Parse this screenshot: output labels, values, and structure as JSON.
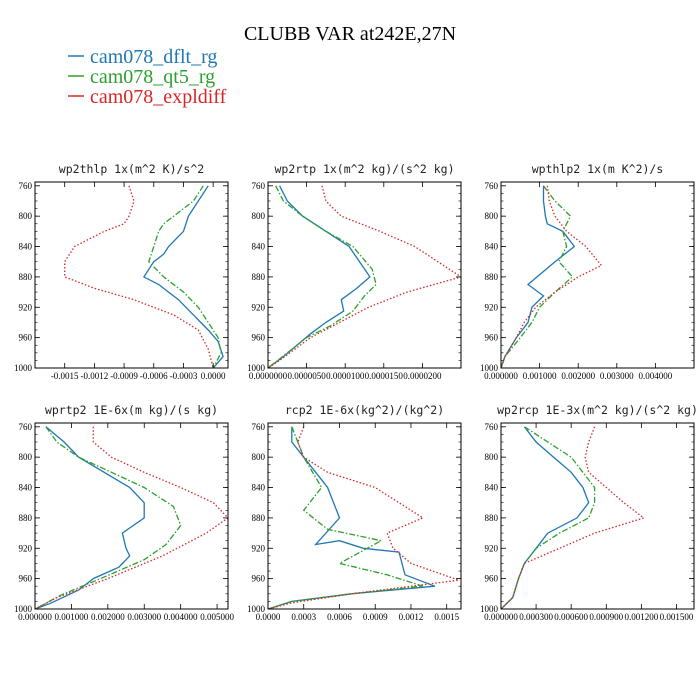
{
  "figure": {
    "title": "CLUBB VAR at242E,27N",
    "legend": [
      {
        "label": "cam078_dflt_rg",
        "color": "#1f77b4",
        "dash": "solid"
      },
      {
        "label": "cam078_qt5_rg",
        "color": "#2ca02c",
        "dash": "dashdot"
      },
      {
        "label": "cam078_expldiff",
        "color": "#d62728",
        "dash": "dotted"
      }
    ]
  },
  "chart_data": [
    {
      "type": "line",
      "title": "wp2thlp   1x(m^2 K)/s^2",
      "xlim": [
        -0.0018,
        0.00015
      ],
      "ylim": [
        1000,
        755
      ],
      "xticks": [
        -0.0015,
        -0.0012,
        -0.0009,
        -0.0006,
        -0.0003,
        0.0
      ],
      "xtick_labels": [
        "-0.0015",
        "-0.0012",
        "-0.0009",
        "-0.0006",
        "-0.0003",
        "0.0000"
      ],
      "yticks": [
        760,
        800,
        840,
        880,
        920,
        960,
        1000
      ],
      "ytick_labels": [
        "760",
        "800",
        "840",
        "880",
        "920",
        "960",
        "1000"
      ],
      "series": [
        {
          "name": "cam078_dflt_rg",
          "x": [
            -5e-05,
            -0.00015,
            -0.00025,
            -0.0003,
            -0.00045,
            -0.0005,
            -0.0006,
            -0.0007,
            -0.00055,
            -0.00035,
            -0.0002,
            -5e-05,
            5e-05,
            0.0001,
            0.0
          ],
          "y": [
            760,
            780,
            800,
            820,
            840,
            850,
            860,
            880,
            890,
            910,
            930,
            950,
            965,
            985,
            1000
          ]
        },
        {
          "name": "cam078_qt5_rg",
          "x": [
            -0.0001,
            -0.0002,
            -0.0004,
            -0.0005,
            -0.00055,
            -0.0006,
            -0.00065,
            -0.0005,
            -0.0003,
            -0.00015,
            -5e-05,
            5e-05,
            8e-05,
            0.0
          ],
          "y": [
            760,
            780,
            800,
            810,
            820,
            840,
            860,
            880,
            900,
            920,
            940,
            960,
            980,
            1000
          ]
        },
        {
          "name": "cam078_expldiff",
          "x": [
            -0.00085,
            -0.0008,
            -0.00085,
            -0.0009,
            -0.0011,
            -0.0014,
            -0.0015,
            -0.0015,
            -0.0012,
            -0.0008,
            -0.0004,
            -0.00015,
            -5e-05,
            0.0
          ],
          "y": [
            760,
            780,
            800,
            810,
            820,
            840,
            860,
            880,
            895,
            910,
            930,
            950,
            975,
            1000
          ]
        }
      ]
    },
    {
      "type": "line",
      "title": "wp2rtp   1x(m^2 kg)/(s^2 kg)",
      "xlim": [
        0.0,
        2.5e-05
      ],
      "ylim": [
        1000,
        755
      ],
      "xticks": [
        0.0,
        5e-06,
        1e-05,
        1.5e-05,
        2e-05
      ],
      "xtick_labels": [
        "0.0000000",
        "0.0000050",
        "0.0000100",
        "0.0000150",
        "0.0000200"
      ],
      "yticks": [
        760,
        800,
        840,
        880,
        920,
        960,
        1000
      ],
      "ytick_labels": [
        "760",
        "800",
        "840",
        "880",
        "920",
        "960",
        "1000"
      ],
      "series": [
        {
          "name": "cam078_dflt_rg",
          "x": [
            1.5e-06,
            2.5e-06,
            4.5e-06,
            7.5e-06,
            1.05e-05,
            1.32e-05,
            1.15e-05,
            9.5e-06,
            9.8e-06,
            7.5e-06,
            5.5e-06,
            2e-06,
            0.0
          ],
          "y": [
            760,
            780,
            800,
            820,
            840,
            880,
            895,
            910,
            925,
            940,
            955,
            985,
            1000
          ]
        },
        {
          "name": "cam078_qt5_rg",
          "x": [
            1e-06,
            2e-06,
            4.5e-06,
            7.5e-06,
            1.1e-05,
            1.35e-05,
            1.4e-05,
            1.25e-05,
            1.1e-05,
            8e-06,
            5e-06,
            1.5e-06,
            0.0
          ],
          "y": [
            760,
            780,
            800,
            820,
            840,
            870,
            890,
            905,
            925,
            945,
            960,
            988,
            1000
          ]
        },
        {
          "name": "cam078_expldiff",
          "x": [
            7e-06,
            7.5e-06,
            9.5e-06,
            1.45e-05,
            1.9e-05,
            2.5e-05,
            1.8e-05,
            1.3e-05,
            5.5e-06,
            1.5e-06,
            0.0
          ],
          "y": [
            760,
            780,
            800,
            820,
            840,
            880,
            900,
            920,
            960,
            990,
            1000
          ]
        }
      ]
    },
    {
      "type": "line",
      "title": "wpthlp2   1x(m K^2)/s",
      "xlim": [
        0.0,
        0.005
      ],
      "ylim": [
        1000,
        755
      ],
      "xticks": [
        0.0,
        0.001,
        0.002,
        0.003,
        0.004
      ],
      "xtick_labels": [
        "0.000000",
        "0.001000",
        "0.002000",
        "0.003000",
        "0.004000"
      ],
      "yticks": [
        760,
        800,
        840,
        880,
        920,
        960,
        1000
      ],
      "ytick_labels": [
        "760",
        "800",
        "840",
        "880",
        "920",
        "960",
        "1000"
      ],
      "series": [
        {
          "name": "cam078_dflt_rg",
          "x": [
            0.0011,
            0.0011,
            0.00115,
            0.0012,
            0.0016,
            0.0019,
            0.0014,
            0.0007,
            0.0011,
            0.0008,
            0.0007,
            0.0004,
            0.0001,
            0.0
          ],
          "y": [
            760,
            780,
            800,
            810,
            820,
            840,
            860,
            890,
            905,
            920,
            940,
            960,
            985,
            1000
          ]
        },
        {
          "name": "cam078_qt5_rg",
          "x": [
            0.0011,
            0.0014,
            0.0018,
            0.0016,
            0.0017,
            0.0015,
            0.00185,
            0.0014,
            0.001,
            0.0008,
            0.0005,
            0.0001,
            0.0
          ],
          "y": [
            760,
            780,
            800,
            820,
            840,
            860,
            880,
            900,
            920,
            940,
            960,
            985,
            1000
          ]
        },
        {
          "name": "cam078_expldiff",
          "x": [
            0.0012,
            0.00125,
            0.0014,
            0.0017,
            0.0022,
            0.0026,
            0.002,
            0.0014,
            0.0009,
            0.0006,
            0.0004,
            0.0001,
            0.0
          ],
          "y": [
            760,
            780,
            800,
            820,
            840,
            865,
            880,
            900,
            920,
            940,
            960,
            985,
            1000
          ]
        }
      ]
    },
    {
      "type": "line",
      "title": "wprtp2   1E-6x(m kg)/(s kg)",
      "xlim": [
        0.0,
        0.0053
      ],
      "ylim": [
        1000,
        755
      ],
      "xticks": [
        0.0,
        0.001,
        0.002,
        0.003,
        0.004,
        0.005
      ],
      "xtick_labels": [
        "0.000000",
        "0.001000",
        "0.002000",
        "0.003000",
        "0.004000",
        "0.005000"
      ],
      "yticks": [
        760,
        800,
        840,
        880,
        920,
        960,
        1000
      ],
      "ytick_labels": [
        "760",
        "800",
        "840",
        "880",
        "920",
        "960",
        "1000"
      ],
      "series": [
        {
          "name": "cam078_dflt_rg",
          "x": [
            0.0003,
            0.0008,
            0.0012,
            0.0019,
            0.0026,
            0.003,
            0.003,
            0.0024,
            0.0025,
            0.0026,
            0.0023,
            0.0016,
            0.0012,
            0.0004,
            0.0
          ],
          "y": [
            760,
            780,
            800,
            820,
            840,
            860,
            880,
            900,
            920,
            930,
            945,
            960,
            975,
            993,
            1000
          ]
        },
        {
          "name": "cam078_qt5_rg",
          "x": [
            0.0003,
            0.0006,
            0.0012,
            0.0021,
            0.003,
            0.0038,
            0.004,
            0.0036,
            0.003,
            0.0018,
            0.0007,
            0.0002,
            0.0
          ],
          "y": [
            760,
            780,
            800,
            820,
            840,
            865,
            890,
            915,
            935,
            960,
            982,
            995,
            1000
          ]
        },
        {
          "name": "cam078_expldiff",
          "x": [
            0.0016,
            0.0016,
            0.0021,
            0.003,
            0.004,
            0.0049,
            0.0053,
            0.0047,
            0.0035,
            0.002,
            0.0006,
            0.0
          ],
          "y": [
            760,
            780,
            800,
            820,
            840,
            860,
            880,
            900,
            930,
            960,
            985,
            1000
          ]
        }
      ]
    },
    {
      "type": "line",
      "title": "rcp2   1E-6x(kg^2)/(kg^2)",
      "xlim": [
        0.0,
        0.00162
      ],
      "ylim": [
        1000,
        755
      ],
      "xticks": [
        0.0,
        0.0003,
        0.0006,
        0.0009,
        0.0012,
        0.0015
      ],
      "xtick_labels": [
        "0.0000",
        "0.0003",
        "0.0006",
        "0.0009",
        "0.0012",
        "0.0015"
      ],
      "yticks": [
        760,
        800,
        840,
        880,
        920,
        960,
        1000
      ],
      "ytick_labels": [
        "760",
        "800",
        "840",
        "880",
        "920",
        "960",
        "1000"
      ],
      "series": [
        {
          "name": "cam078_dflt_rg",
          "x": [
            0.0002,
            0.0002,
            0.0003,
            0.0004,
            0.0005,
            0.0006,
            0.0004,
            0.0006,
            0.0008,
            0.0011,
            0.00115,
            0.0014,
            0.0007,
            0.0002,
            0.0
          ],
          "y": [
            760,
            780,
            800,
            820,
            840,
            880,
            915,
            910,
            920,
            925,
            955,
            970,
            980,
            990,
            1000
          ]
        },
        {
          "name": "cam078_qt5_rg",
          "x": [
            0.0002,
            0.00025,
            0.0003,
            0.00045,
            0.0003,
            0.0005,
            0.00095,
            0.0006,
            0.001,
            0.0013,
            0.0007,
            0.0002,
            0.0
          ],
          "y": [
            760,
            780,
            800,
            840,
            870,
            895,
            910,
            940,
            955,
            970,
            980,
            990,
            1000
          ]
        },
        {
          "name": "cam078_expldiff",
          "x": [
            0.0003,
            0.00025,
            0.0003,
            0.0005,
            0.0009,
            0.0011,
            0.0013,
            0.001,
            0.00105,
            0.0012,
            0.0016,
            0.0007,
            0.0002,
            0.0
          ],
          "y": [
            760,
            780,
            800,
            820,
            840,
            860,
            880,
            900,
            920,
            940,
            962,
            980,
            992,
            1000
          ]
        }
      ]
    },
    {
      "type": "line",
      "title": "wp2rcp   1E-3x(m^2 kg)/(s^2 kg)",
      "xlim": [
        0.0,
        0.00165
      ],
      "ylim": [
        1000,
        755
      ],
      "xticks": [
        0.0,
        0.0003,
        0.0006,
        0.0009,
        0.0012,
        0.0015
      ],
      "xtick_labels": [
        "0.000000",
        "0.000300",
        "0.000600",
        "0.000900",
        "0.001200",
        "0.001500"
      ],
      "yticks": [
        760,
        800,
        840,
        880,
        920,
        960,
        1000
      ],
      "ytick_labels": [
        "760",
        "800",
        "840",
        "880",
        "920",
        "960",
        "1000"
      ],
      "series": [
        {
          "name": "cam078_dflt_rg",
          "x": [
            0.0002,
            0.0003,
            0.00045,
            0.0006,
            0.0007,
            0.00075,
            0.00065,
            0.0004,
            0.0003,
            0.0002,
            0.00015,
            0.0001,
            0.0
          ],
          "y": [
            760,
            780,
            800,
            820,
            840,
            860,
            880,
            900,
            920,
            940,
            960,
            985,
            1000
          ]
        },
        {
          "name": "cam078_qt5_rg",
          "x": [
            0.0002,
            0.0004,
            0.0006,
            0.0007,
            0.0008,
            0.0008,
            0.00075,
            0.0005,
            0.0003,
            0.0002,
            0.00015,
            0.0001,
            0.0
          ],
          "y": [
            760,
            780,
            800,
            820,
            840,
            860,
            880,
            900,
            920,
            940,
            960,
            985,
            1000
          ]
        },
        {
          "name": "cam078_expldiff",
          "x": [
            0.0008,
            0.00075,
            0.00072,
            0.00075,
            0.0009,
            0.00105,
            0.00122,
            0.0008,
            0.0005,
            0.0002,
            0.00015,
            0.0001,
            0.0
          ],
          "y": [
            760,
            780,
            800,
            820,
            840,
            860,
            880,
            900,
            920,
            940,
            960,
            985,
            1000
          ]
        }
      ]
    }
  ]
}
